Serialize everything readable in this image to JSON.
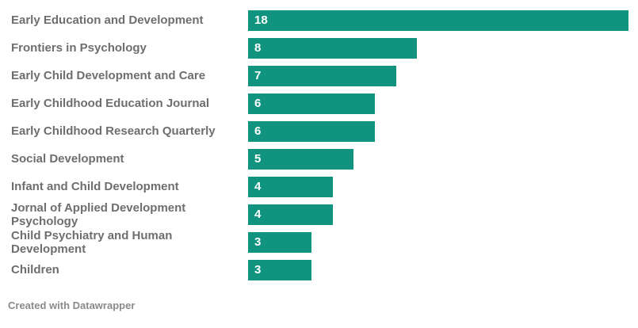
{
  "chart_data": {
    "type": "bar",
    "orientation": "horizontal",
    "categories": [
      "Early Education and Development",
      "Frontiers in Psychology",
      "Early Child Development and Care",
      "Early Childhood Education Journal",
      "Early Childhood Research Quarterly",
      "Social Development",
      "Infant and Child Development",
      "Jornal of Applied Development Psychology",
      "Child Psychiatry and Human Development",
      "Children"
    ],
    "values": [
      18,
      8,
      7,
      6,
      6,
      5,
      4,
      4,
      3,
      3
    ],
    "title": "",
    "xlabel": "",
    "ylabel": "",
    "xlim": [
      0,
      18
    ],
    "grid": false,
    "legend": false,
    "bar_color": "#109480",
    "value_labels_inside_bars": true
  },
  "footer": {
    "credit": "Created with Datawrapper"
  },
  "colors": {
    "bar": "#109480",
    "label_text": "#6e6e6e",
    "value_text": "#ffffff",
    "footer_text": "#8a8a8a",
    "background": "#ffffff"
  }
}
